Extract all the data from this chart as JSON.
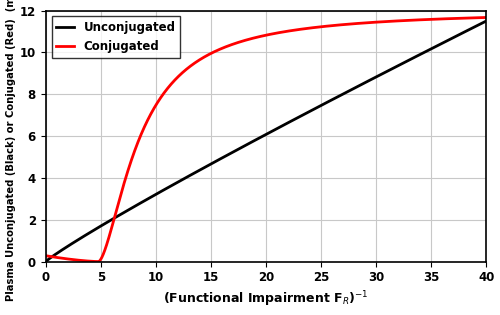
{
  "xlim": [
    0,
    40
  ],
  "ylim": [
    0,
    12
  ],
  "xticks": [
    0,
    5,
    10,
    15,
    20,
    25,
    30,
    35,
    40
  ],
  "yticks": [
    0,
    2,
    4,
    6,
    8,
    10,
    12
  ],
  "legend_labels": [
    "Unconjugated",
    "Conjugated"
  ],
  "line_width": 2.0,
  "background_color": "#ffffff",
  "grid_color": "#c8c8c8"
}
